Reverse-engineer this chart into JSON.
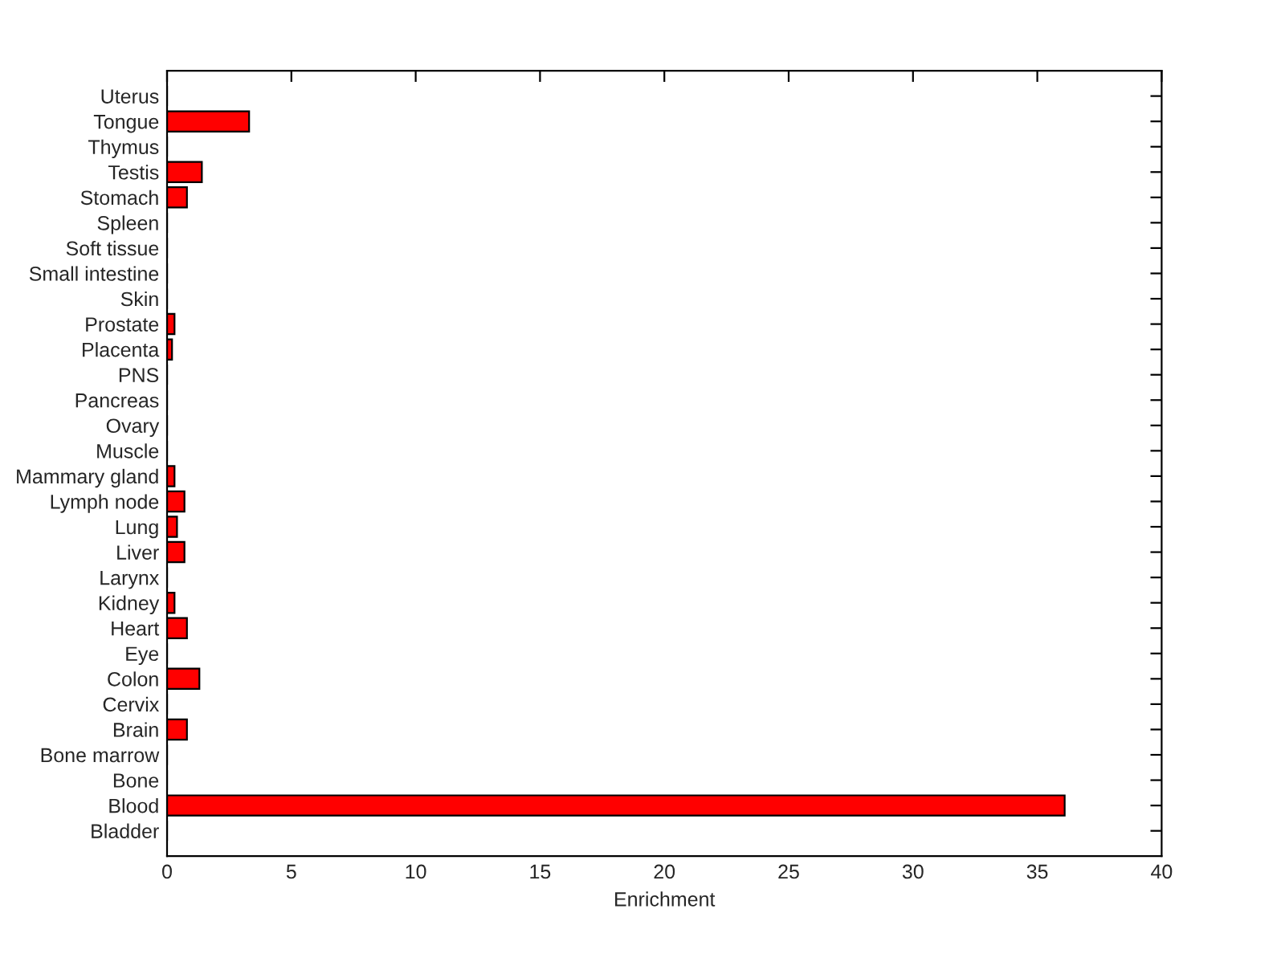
{
  "chart_data": {
    "type": "bar",
    "orientation": "horizontal",
    "xlabel": "Enrichment",
    "categories": [
      "Uterus",
      "Tongue",
      "Thymus",
      "Testis",
      "Stomach",
      "Spleen",
      "Soft tissue",
      "Small intestine",
      "Skin",
      "Prostate",
      "Placenta",
      "PNS",
      "Pancreas",
      "Ovary",
      "Muscle",
      "Mammary gland",
      "Lymph node",
      "Lung",
      "Liver",
      "Larynx",
      "Kidney",
      "Heart",
      "Eye",
      "Colon",
      "Cervix",
      "Brain",
      "Bone marrow",
      "Bone",
      "Blood",
      "Bladder"
    ],
    "values": [
      0,
      3.3,
      0,
      1.4,
      0.8,
      0,
      0,
      0,
      0,
      0.3,
      0.2,
      0,
      0,
      0,
      0,
      0.3,
      0.7,
      0.4,
      0.7,
      0,
      0.3,
      0.8,
      0,
      1.3,
      0,
      0.8,
      0,
      0,
      36.1,
      0
    ],
    "color": "#ff0000",
    "xlim": [
      0,
      40
    ],
    "xticks": [
      0,
      5,
      10,
      15,
      20,
      25,
      30,
      35,
      40
    ],
    "grid": false,
    "legend": false
  }
}
